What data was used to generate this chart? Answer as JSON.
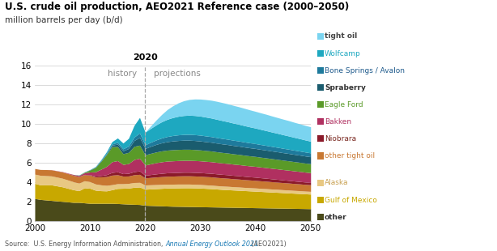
{
  "title": "U.S. crude oil production, AEO2021 Reference case (2000–2050)",
  "subtitle": "million barrels per day (b/d)",
  "ylim": [
    0,
    16
  ],
  "xlim": [
    2000,
    2050
  ],
  "divide_year": 2020,
  "layers": [
    {
      "name": "other",
      "color": "#4a4a1a"
    },
    {
      "name": "Gulf of Mexico",
      "color": "#c8a800"
    },
    {
      "name": "Alaska",
      "color": "#e8c882"
    },
    {
      "name": "other tight oil",
      "color": "#c87832"
    },
    {
      "name": "Niobrara",
      "color": "#8b1a2a"
    },
    {
      "name": "Bakken",
      "color": "#b03060"
    },
    {
      "name": "Eagle Ford",
      "color": "#5a9a28"
    },
    {
      "name": "Spraberry",
      "color": "#1a5c6e"
    },
    {
      "name": "Bone Springs / Avalon",
      "color": "#1e7a9c"
    },
    {
      "name": "Wolfcamp",
      "color": "#1ea8c0"
    },
    {
      "name": "tight oil",
      "color": "#7ad4f0"
    }
  ],
  "legend_text_colors": {
    "tight oil": "#444444",
    "Wolfcamp": "#1ea8c0",
    "Bone Springs / Avalon": "#1e5a8c",
    "Spraberry": "#333333",
    "Eagle Ford": "#5a9a28",
    "Bakken": "#b03060",
    "Niobrara": "#7a2820",
    "other tight oil": "#c87832",
    "Alaska": "#c8a050",
    "Gulf of Mexico": "#c8a800",
    "other": "#333333"
  },
  "years_history": [
    2000,
    2001,
    2002,
    2003,
    2004,
    2005,
    2006,
    2007,
    2008,
    2009,
    2010,
    2011,
    2012,
    2013,
    2014,
    2015,
    2016,
    2017,
    2018,
    2019,
    2020
  ],
  "years_proj": [
    2020,
    2021,
    2022,
    2023,
    2024,
    2025,
    2026,
    2027,
    2028,
    2029,
    2030,
    2031,
    2032,
    2033,
    2034,
    2035,
    2036,
    2037,
    2038,
    2039,
    2040,
    2041,
    2042,
    2043,
    2044,
    2045,
    2046,
    2047,
    2048,
    2049,
    2050
  ],
  "data_history": {
    "other": [
      2.3,
      2.2,
      2.15,
      2.1,
      2.05,
      2.0,
      1.95,
      1.9,
      1.9,
      1.85,
      1.8,
      1.8,
      1.8,
      1.8,
      1.8,
      1.78,
      1.75,
      1.72,
      1.7,
      1.68,
      1.6
    ],
    "Gulf of Mexico": [
      1.55,
      1.5,
      1.55,
      1.6,
      1.55,
      1.5,
      1.4,
      1.3,
      1.2,
      1.55,
      1.55,
      1.35,
      1.3,
      1.28,
      1.4,
      1.55,
      1.6,
      1.65,
      1.75,
      1.8,
      1.65
    ],
    "Alaska": [
      0.95,
      0.98,
      0.95,
      0.92,
      0.9,
      0.88,
      0.85,
      0.82,
      0.78,
      0.72,
      0.68,
      0.64,
      0.6,
      0.57,
      0.52,
      0.49,
      0.47,
      0.48,
      0.49,
      0.48,
      0.44
    ],
    "other tight oil": [
      0.58,
      0.6,
      0.62,
      0.63,
      0.64,
      0.65,
      0.66,
      0.66,
      0.66,
      0.63,
      0.66,
      0.72,
      0.82,
      0.9,
      0.98,
      0.92,
      0.78,
      0.76,
      0.8,
      0.82,
      0.72
    ],
    "Niobrara": [
      0.0,
      0.0,
      0.0,
      0.0,
      0.0,
      0.0,
      0.0,
      0.01,
      0.02,
      0.03,
      0.05,
      0.08,
      0.14,
      0.2,
      0.28,
      0.3,
      0.25,
      0.28,
      0.32,
      0.35,
      0.28
    ],
    "Bakken": [
      0.0,
      0.0,
      0.0,
      0.01,
      0.02,
      0.03,
      0.05,
      0.07,
      0.1,
      0.16,
      0.28,
      0.45,
      0.65,
      0.85,
      1.1,
      1.15,
      0.95,
      1.0,
      1.25,
      1.3,
      1.05
    ],
    "Eagle Ford": [
      0.0,
      0.0,
      0.0,
      0.0,
      0.0,
      0.0,
      0.0,
      0.01,
      0.02,
      0.06,
      0.2,
      0.45,
      0.8,
      1.2,
      1.55,
      1.45,
      1.1,
      1.15,
      1.35,
      1.35,
      1.05
    ],
    "Spraberry": [
      0.0,
      0.0,
      0.0,
      0.0,
      0.0,
      0.0,
      0.0,
      0.0,
      0.01,
      0.01,
      0.02,
      0.03,
      0.05,
      0.08,
      0.15,
      0.25,
      0.3,
      0.4,
      0.6,
      0.8,
      0.65
    ],
    "Bone Springs / Avalon": [
      0.0,
      0.0,
      0.0,
      0.0,
      0.0,
      0.0,
      0.0,
      0.0,
      0.01,
      0.01,
      0.02,
      0.03,
      0.05,
      0.08,
      0.12,
      0.18,
      0.2,
      0.25,
      0.35,
      0.45,
      0.38
    ],
    "Wolfcamp": [
      0.0,
      0.0,
      0.0,
      0.0,
      0.0,
      0.0,
      0.0,
      0.0,
      0.01,
      0.01,
      0.02,
      0.04,
      0.08,
      0.15,
      0.25,
      0.45,
      0.6,
      0.8,
      1.2,
      1.6,
      1.3
    ],
    "tight oil": [
      0.0,
      0.0,
      0.0,
      0.0,
      0.0,
      0.0,
      0.0,
      0.0,
      0.0,
      0.0,
      0.0,
      0.0,
      0.0,
      0.0,
      0.0,
      0.0,
      0.0,
      0.0,
      0.0,
      0.0,
      0.0
    ]
  },
  "data_proj": {
    "other": [
      1.6,
      1.58,
      1.56,
      1.54,
      1.52,
      1.5,
      1.49,
      1.48,
      1.47,
      1.46,
      1.45,
      1.44,
      1.43,
      1.42,
      1.41,
      1.4,
      1.39,
      1.38,
      1.37,
      1.36,
      1.35,
      1.34,
      1.33,
      1.32,
      1.31,
      1.3,
      1.29,
      1.28,
      1.27,
      1.26,
      1.25
    ],
    "Gulf of Mexico": [
      1.65,
      1.7,
      1.75,
      1.8,
      1.85,
      1.88,
      1.9,
      1.92,
      1.93,
      1.93,
      1.92,
      1.9,
      1.88,
      1.85,
      1.82,
      1.8,
      1.78,
      1.76,
      1.74,
      1.72,
      1.7,
      1.68,
      1.66,
      1.64,
      1.62,
      1.6,
      1.58,
      1.56,
      1.54,
      1.52,
      1.5
    ],
    "Alaska": [
      0.44,
      0.43,
      0.42,
      0.41,
      0.4,
      0.39,
      0.39,
      0.38,
      0.38,
      0.37,
      0.37,
      0.36,
      0.36,
      0.35,
      0.35,
      0.35,
      0.34,
      0.34,
      0.33,
      0.33,
      0.33,
      0.32,
      0.32,
      0.31,
      0.31,
      0.3,
      0.3,
      0.29,
      0.29,
      0.28,
      0.28
    ],
    "other tight oil": [
      0.72,
      0.75,
      0.78,
      0.8,
      0.82,
      0.83,
      0.84,
      0.85,
      0.85,
      0.85,
      0.85,
      0.85,
      0.85,
      0.84,
      0.84,
      0.83,
      0.82,
      0.81,
      0.8,
      0.79,
      0.78,
      0.77,
      0.76,
      0.75,
      0.74,
      0.73,
      0.72,
      0.71,
      0.7,
      0.69,
      0.68
    ],
    "Niobrara": [
      0.28,
      0.3,
      0.32,
      0.34,
      0.35,
      0.36,
      0.36,
      0.37,
      0.37,
      0.37,
      0.37,
      0.37,
      0.37,
      0.37,
      0.36,
      0.36,
      0.35,
      0.35,
      0.34,
      0.33,
      0.33,
      0.32,
      0.31,
      0.3,
      0.29,
      0.28,
      0.27,
      0.26,
      0.25,
      0.24,
      0.23
    ],
    "Bakken": [
      1.05,
      1.1,
      1.15,
      1.18,
      1.2,
      1.21,
      1.22,
      1.22,
      1.22,
      1.22,
      1.21,
      1.2,
      1.19,
      1.18,
      1.17,
      1.16,
      1.15,
      1.14,
      1.13,
      1.12,
      1.11,
      1.1,
      1.09,
      1.08,
      1.07,
      1.06,
      1.05,
      1.04,
      1.03,
      1.02,
      1.01
    ],
    "Eagle Ford": [
      1.05,
      1.08,
      1.1,
      1.12,
      1.13,
      1.14,
      1.14,
      1.14,
      1.14,
      1.13,
      1.12,
      1.11,
      1.1,
      1.09,
      1.08,
      1.07,
      1.06,
      1.05,
      1.04,
      1.03,
      1.02,
      1.01,
      1.0,
      0.99,
      0.98,
      0.97,
      0.96,
      0.95,
      0.94,
      0.93,
      0.92
    ],
    "Spraberry": [
      0.65,
      0.72,
      0.78,
      0.83,
      0.87,
      0.9,
      0.92,
      0.93,
      0.93,
      0.93,
      0.92,
      0.91,
      0.9,
      0.89,
      0.88,
      0.87,
      0.86,
      0.85,
      0.84,
      0.83,
      0.82,
      0.81,
      0.8,
      0.79,
      0.78,
      0.77,
      0.76,
      0.75,
      0.74,
      0.73,
      0.72
    ],
    "Bone Springs / Avalon": [
      0.38,
      0.42,
      0.46,
      0.5,
      0.53,
      0.56,
      0.58,
      0.59,
      0.6,
      0.6,
      0.6,
      0.59,
      0.58,
      0.57,
      0.56,
      0.55,
      0.54,
      0.53,
      0.52,
      0.51,
      0.5,
      0.49,
      0.48,
      0.47,
      0.46,
      0.45,
      0.44,
      0.43,
      0.42,
      0.41,
      0.4
    ],
    "Wolfcamp": [
      1.3,
      1.42,
      1.55,
      1.67,
      1.77,
      1.85,
      1.91,
      1.95,
      1.97,
      1.97,
      1.96,
      1.94,
      1.91,
      1.88,
      1.84,
      1.8,
      1.76,
      1.72,
      1.68,
      1.64,
      1.6,
      1.56,
      1.52,
      1.48,
      1.44,
      1.4,
      1.36,
      1.32,
      1.28,
      1.24,
      1.2
    ],
    "tight oil": [
      0.0,
      0.25,
      0.5,
      0.75,
      1.0,
      1.2,
      1.38,
      1.52,
      1.62,
      1.7,
      1.75,
      1.8,
      1.83,
      1.85,
      1.85,
      1.84,
      1.82,
      1.8,
      1.78,
      1.75,
      1.72,
      1.7,
      1.68,
      1.65,
      1.62,
      1.6,
      1.58,
      1.55,
      1.52,
      1.5,
      1.48
    ]
  }
}
